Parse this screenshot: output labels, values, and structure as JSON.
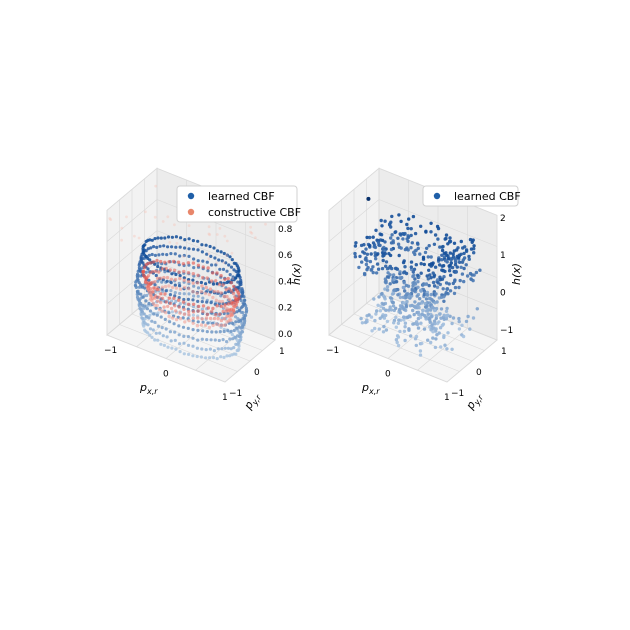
{
  "chart_data": [
    {
      "type": "scatter3d",
      "series": [
        {
          "name": "learned CBF",
          "color": "#1f5fa8",
          "colormap": "Blues"
        },
        {
          "name": "constructive CBF",
          "color": "#e8866a",
          "colormap": "Reds"
        }
      ],
      "xlabel": "p_{x,r}",
      "ylabel": "p_{y,r}",
      "zlabel": "h(x)",
      "xlim": [
        -1,
        1
      ],
      "ylim": [
        -1,
        1
      ],
      "zlim": [
        -0.1,
        0.9
      ],
      "xticks": [
        "−1",
        "0",
        "1"
      ],
      "yticks": [
        "−1",
        "0",
        "1"
      ],
      "zticks": [
        "0.0",
        "0.2",
        "0.4",
        "0.6",
        "0.8"
      ],
      "legend": "upper-right",
      "grid": true
    },
    {
      "type": "scatter3d",
      "series": [
        {
          "name": "learned CBF",
          "color": "#1f5fa8",
          "colormap": "Blues"
        }
      ],
      "xlabel": "p_{x,r}",
      "ylabel": "p_{y,r}",
      "zlabel": "h(x)",
      "xlim": [
        -1,
        1
      ],
      "ylim": [
        -1,
        1
      ],
      "zlim": [
        -1.3,
        2.6
      ],
      "xticks": [
        "−1",
        "0",
        "1"
      ],
      "yticks": [
        "−1",
        "0",
        "1"
      ],
      "zticks": [
        "−1",
        "0",
        "1",
        "2"
      ],
      "legend": "upper-right",
      "grid": true
    }
  ]
}
